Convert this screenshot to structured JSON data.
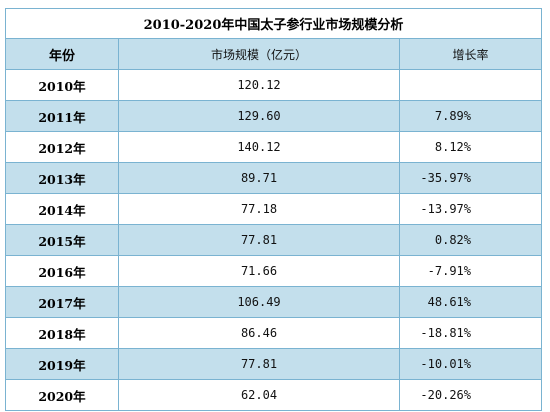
{
  "title": "2010-2020年中国太子参行业市场规模分析",
  "headers": {
    "year": "年份",
    "size": "市场规模（亿元）",
    "rate": "增长率"
  },
  "colors": {
    "border": "#7ab3d1",
    "stripe": "#c3dfec",
    "header_bg": "#c3dfec"
  },
  "rows": [
    {
      "year": "2010年",
      "size": "120.12",
      "rate": ""
    },
    {
      "year": "2011年",
      "size": "129.60",
      "rate": "7.89%"
    },
    {
      "year": "2012年",
      "size": "140.12",
      "rate": "8.12%"
    },
    {
      "year": "2013年",
      "size": "89.71",
      "rate": "-35.97%"
    },
    {
      "year": "2014年",
      "size": "77.18",
      "rate": "-13.97%"
    },
    {
      "year": "2015年",
      "size": "77.81",
      "rate": "0.82%"
    },
    {
      "year": "2016年",
      "size": "71.66",
      "rate": "-7.91%"
    },
    {
      "year": "2017年",
      "size": "106.49",
      "rate": "48.61%"
    },
    {
      "year": "2018年",
      "size": "86.46",
      "rate": "-18.81%"
    },
    {
      "year": "2019年",
      "size": "77.81",
      "rate": "-10.01%"
    },
    {
      "year": "2020年",
      "size": "62.04",
      "rate": "-20.26%"
    }
  ]
}
